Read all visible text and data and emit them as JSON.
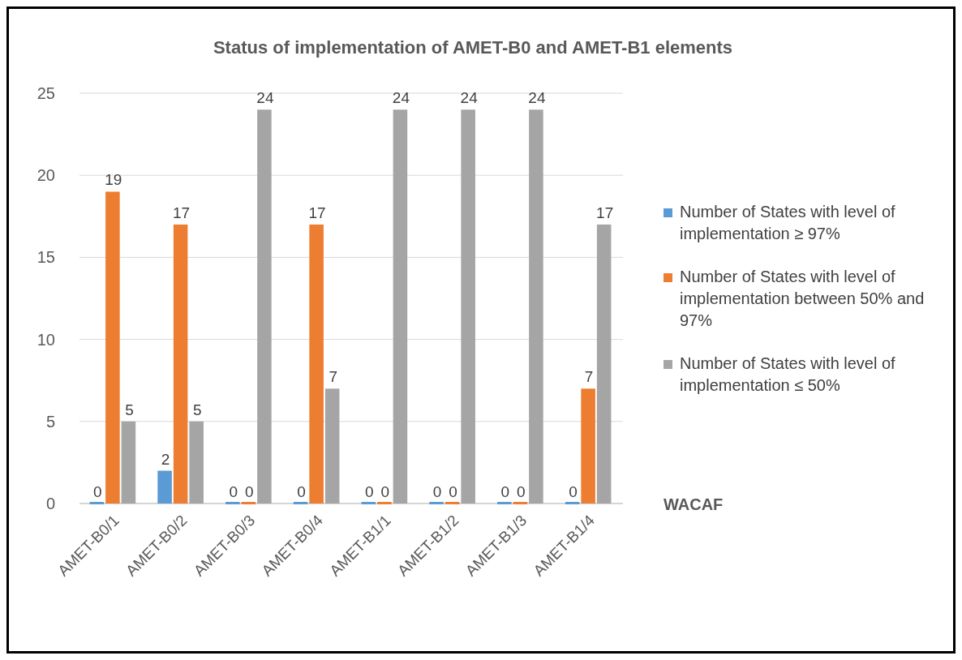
{
  "chart_data": {
    "type": "bar",
    "title": "Status of implementation of AMET-B0 and AMET-B1 elements",
    "categories": [
      "AMET-B0/1",
      "AMET-B0/2",
      "AMET-B0/3",
      "AMET-B0/4",
      "AMET-B1/1",
      "AMET-B1/2",
      "AMET-B1/3",
      "AMET-B1/4"
    ],
    "series": [
      {
        "name": "Number of States with level of implementation ≥ 97%",
        "color": "#5b9bd5",
        "values": [
          0,
          2,
          0,
          0,
          0,
          0,
          0,
          0
        ]
      },
      {
        "name": "Number of States with level of implementation between 50% and 97%",
        "color": "#ed7d31",
        "values": [
          19,
          17,
          0,
          17,
          0,
          0,
          0,
          7
        ]
      },
      {
        "name": "Number of States with level of implementation ≤ 50%",
        "color": "#a5a5a5",
        "values": [
          5,
          5,
          24,
          7,
          24,
          24,
          24,
          17
        ]
      }
    ],
    "ylim": [
      0,
      25
    ],
    "yticks": [
      0,
      5,
      10,
      15,
      20,
      25
    ],
    "grid": "y",
    "legend": "right",
    "data_labels": true,
    "annotations": [
      "WACAF"
    ]
  }
}
